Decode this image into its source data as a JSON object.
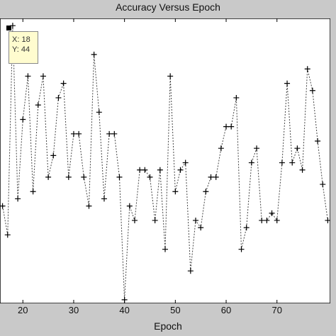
{
  "title": "Accuracy Versus Epoch",
  "xlabel": "Epoch",
  "datatip": {
    "x_text": "X: 18",
    "y_text": "Y: 44"
  },
  "chart_data": {
    "type": "line",
    "title": "Accuracy Versus Epoch",
    "xlabel": "Epoch",
    "ylabel": "",
    "x_ticks": [
      "20",
      "30",
      "40",
      "50",
      "60",
      "70"
    ],
    "xlim": [
      15.5,
      80.5
    ],
    "ylim": [
      5.5,
      45
    ],
    "grid": false,
    "line_style": "dotted",
    "marker": "+",
    "line_color": "#444444",
    "series": [
      {
        "x": [
          16,
          17,
          18,
          19,
          20,
          21,
          22,
          23,
          24,
          25,
          26,
          27,
          28,
          29,
          30,
          31,
          32,
          33,
          34,
          35,
          36,
          37,
          38,
          39,
          40,
          41,
          42,
          43,
          44,
          45,
          46,
          47,
          48,
          49,
          50,
          51,
          52,
          53,
          54,
          55,
          56,
          57,
          58,
          59,
          60,
          61,
          62,
          63,
          64,
          65,
          66,
          67,
          68,
          69,
          70,
          71,
          72,
          73,
          74,
          75,
          76,
          77,
          78,
          79,
          80
        ],
        "y": [
          19,
          15,
          44,
          20,
          31,
          37,
          21,
          33,
          37,
          23,
          26,
          34,
          36,
          23,
          29,
          29,
          23,
          19,
          40,
          32,
          20,
          29,
          29,
          23,
          6,
          19,
          17,
          24,
          24,
          23,
          17,
          24,
          13,
          37,
          21,
          24,
          25,
          10,
          17,
          16,
          21,
          23,
          23,
          27,
          30,
          30,
          34,
          13,
          16,
          25,
          27,
          17,
          17,
          18,
          17,
          25,
          36,
          25,
          27,
          24,
          38,
          35,
          28,
          22,
          17
        ]
      }
    ]
  }
}
